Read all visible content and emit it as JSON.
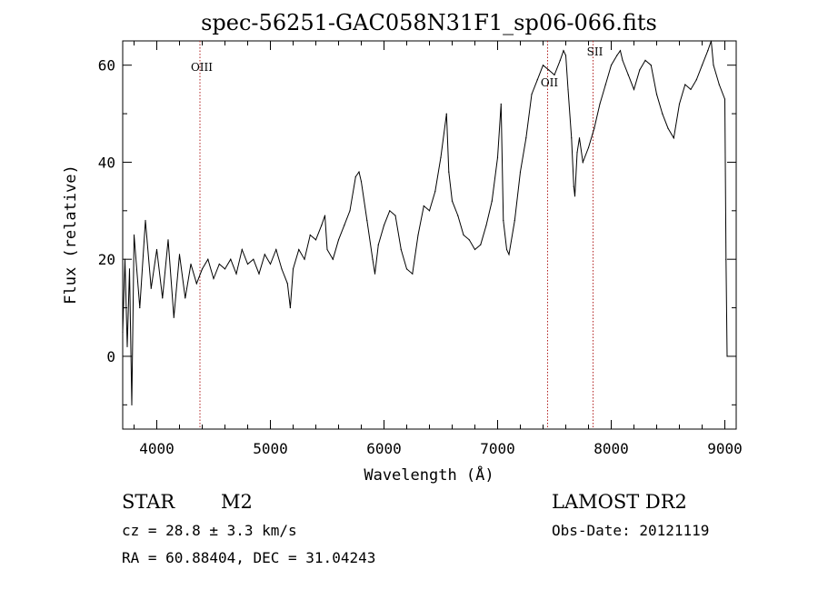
{
  "chart_data": {
    "type": "line",
    "title": "spec-56251-GAC058N31F1_sp06-066.fits",
    "xlabel": "Wavelength (Å)",
    "ylabel": "Flux (relative)",
    "xlim": [
      3700,
      9100
    ],
    "ylim": [
      -15,
      65
    ],
    "xticks": [
      "4000",
      "5000",
      "6000",
      "7000",
      "8000",
      "9000"
    ],
    "yticks": [
      "0",
      "20",
      "40",
      "60"
    ],
    "grid": false,
    "series": [
      {
        "x": [
          3700,
          3720,
          3740,
          3760,
          3780,
          3800,
          3850,
          3900,
          3950,
          4000,
          4050,
          4100,
          4150,
          4200,
          4250,
          4300,
          4350,
          4400,
          4450,
          4500,
          4550,
          4600,
          4650,
          4700,
          4750,
          4800,
          4850,
          4900,
          4950,
          5000,
          5050,
          5100,
          5150,
          5175,
          5200,
          5250,
          5300,
          5350,
          5400,
          5450,
          5480,
          5500,
          5550,
          5600,
          5650,
          5700,
          5750,
          5780,
          5800,
          5850,
          5900,
          5920,
          5950,
          6000,
          6050,
          6100,
          6150,
          6200,
          6250,
          6300,
          6350,
          6400,
          6450,
          6500,
          6550,
          6570,
          6600,
          6650,
          6700,
          6750,
          6800,
          6850,
          6900,
          6950,
          7000,
          7030,
          7050,
          7080,
          7100,
          7150,
          7200,
          7250,
          7300,
          7350,
          7400,
          7450,
          7500,
          7550,
          7580,
          7600,
          7620,
          7650,
          7670,
          7680,
          7700,
          7720,
          7750,
          7800,
          7850,
          7900,
          7950,
          8000,
          8050,
          8080,
          8100,
          8150,
          8200,
          8250,
          8300,
          8350,
          8400,
          8450,
          8500,
          8550,
          8600,
          8650,
          8700,
          8750,
          8800,
          8850,
          8880,
          8900,
          8950,
          9000,
          9010,
          9020
        ],
        "y": [
          5,
          20,
          2,
          18,
          -10,
          25,
          10,
          28,
          14,
          22,
          12,
          24,
          8,
          21,
          12,
          19,
          15,
          18,
          20,
          16,
          19,
          18,
          20,
          17,
          22,
          19,
          20,
          17,
          21,
          19,
          22,
          18,
          15,
          10,
          18,
          22,
          20,
          25,
          24,
          27,
          29,
          22,
          20,
          24,
          27,
          30,
          37,
          38,
          36,
          28,
          20,
          17,
          23,
          27,
          30,
          29,
          22,
          18,
          17,
          25,
          31,
          30,
          34,
          41,
          50,
          38,
          32,
          29,
          25,
          24,
          22,
          23,
          27,
          32,
          41,
          52,
          28,
          22,
          21,
          28,
          38,
          45,
          54,
          57,
          60,
          59,
          58,
          61,
          63,
          62,
          55,
          45,
          35,
          33,
          42,
          45,
          40,
          43,
          47,
          52,
          56,
          60,
          62,
          63,
          61,
          58,
          55,
          59,
          61,
          60,
          54,
          50,
          47,
          45,
          52,
          56,
          55,
          57,
          60,
          63,
          65,
          60,
          56,
          53,
          20,
          0
        ]
      }
    ],
    "reference_lines": [
      {
        "label": "OIII",
        "x": 4380
      },
      {
        "label": "OII",
        "x": 7440
      },
      {
        "label": "SII",
        "x": 7840
      }
    ]
  },
  "footer": {
    "object_type": "STAR",
    "subclass": "M2",
    "survey": "LAMOST DR2",
    "cz": "cz = 28.8 ± 3.3 km/s",
    "obs_date": "Obs-Date: 20121119",
    "coords": "RA =  60.88404, DEC =  31.04243"
  },
  "colors": {
    "line": "#000000",
    "reference_line": "#b22222"
  }
}
